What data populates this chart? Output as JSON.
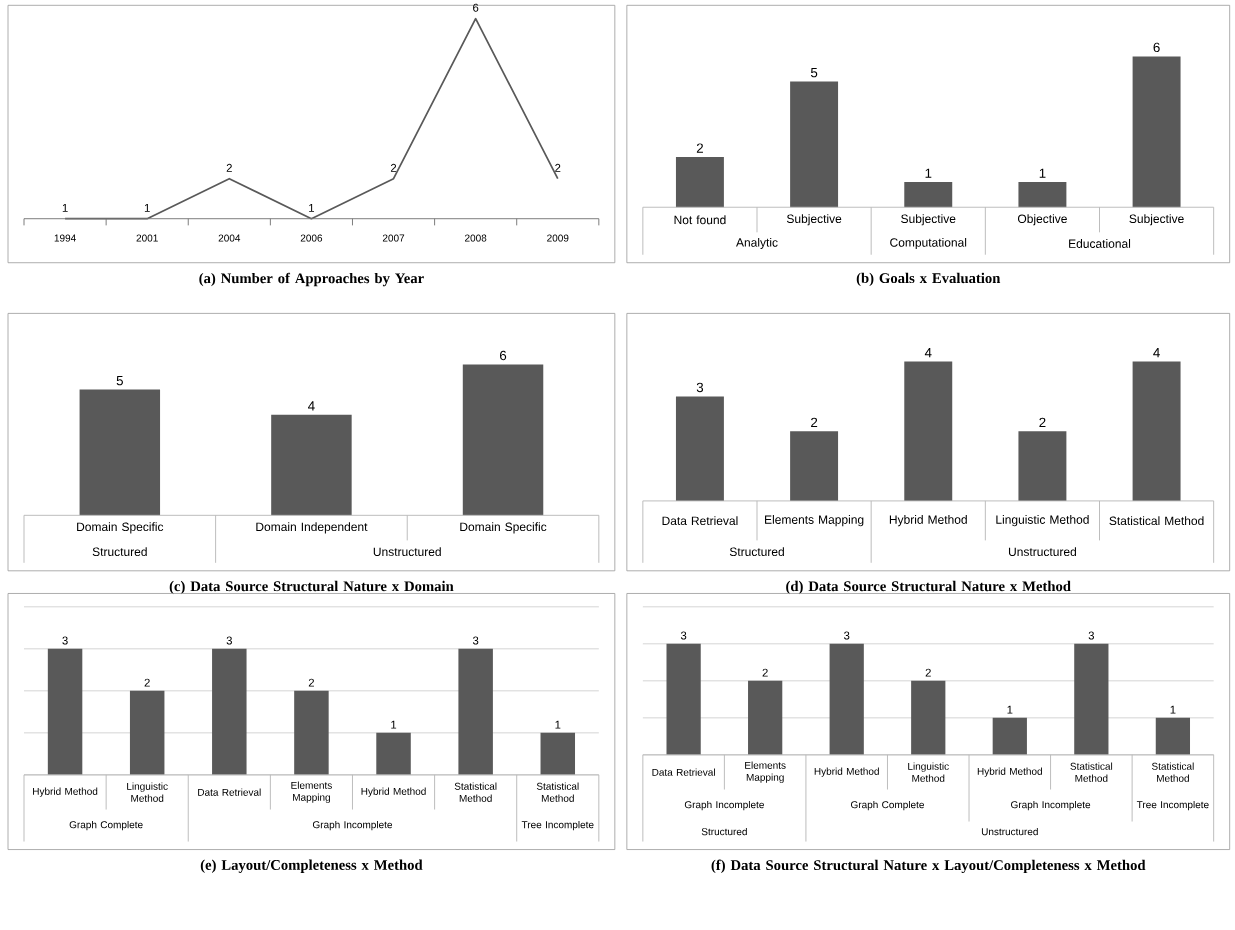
{
  "chart_data": [
    {
      "type": "line",
      "title": "(a) Number of Approaches by Year",
      "categories": [
        "1994",
        "2001",
        "2004",
        "2006",
        "2007",
        "2008",
        "2009"
      ],
      "values": [
        1,
        1,
        2,
        1,
        2,
        6,
        2
      ],
      "color": "#595959",
      "data_labels": true
    },
    {
      "type": "bar",
      "title": "(b) Goals x Evaluation",
      "categories": [
        "Not found",
        "Subjective",
        "Subjective",
        "Objective",
        "Subjective"
      ],
      "values": [
        2,
        5,
        1,
        1,
        6
      ],
      "color": "#595959",
      "data_labels": true,
      "annotations": [
        "Analytic",
        "Computational",
        "Educational"
      ]
    },
    {
      "type": "bar",
      "title": "(c) Data Source Structural Nature x Domain",
      "categories": [
        "Domain Specific",
        "Domain Independent",
        "Domain Specific"
      ],
      "values": [
        5,
        4,
        6
      ],
      "color": "#595959",
      "data_labels": true,
      "annotations": [
        "Structured",
        "Unstructured"
      ]
    },
    {
      "type": "bar",
      "title": "(d) Data Source Structural Nature x Method",
      "categories": [
        "Data Retrieval",
        "Elements Mapping",
        "Hybrid Method",
        "Linguistic Method",
        "Statistical Method"
      ],
      "values": [
        3,
        2,
        4,
        2,
        4
      ],
      "color": "#595959",
      "data_labels": true,
      "annotations": [
        "Structured",
        "Unstructured"
      ]
    },
    {
      "type": "bar",
      "title": "(e) Layout/Completeness x Method",
      "categories": [
        "Hybrid Method",
        "Linguistic Method",
        "Data Retrieval",
        "Elements Mapping",
        "Hybrid Method",
        "Statistical Method",
        "Statistical Method"
      ],
      "values": [
        3,
        2,
        3,
        2,
        1,
        3,
        1
      ],
      "color": "#595959",
      "data_labels": true,
      "ylim": [
        0,
        4
      ],
      "yticks": [
        {
          "value": 0,
          "label": null
        },
        {
          "value": 1,
          "label": null
        },
        {
          "value": 2,
          "label": null
        },
        {
          "value": 3,
          "label": null
        },
        {
          "value": 4,
          "label": null
        }
      ],
      "grid": "y",
      "tick_labels": "x",
      "annotations": [
        "Graph Complete",
        "Graph Incomplete",
        "Tree Incomplete"
      ]
    },
    {
      "type": "bar",
      "title": "(f) Data Source Structural Nature x Layout/Completeness x Method",
      "categories": [
        "Data Retrieval",
        "Elements Mapping",
        "Hybrid Method",
        "Linguistic Method",
        "Hybrid Method",
        "Statistical Method",
        "Statistical Method"
      ],
      "values": [
        3,
        2,
        3,
        2,
        1,
        3,
        1
      ],
      "color": "#595959",
      "data_labels": true,
      "ylim": [
        0,
        4
      ],
      "yticks": [
        {
          "value": 0,
          "label": null
        },
        {
          "value": 1,
          "label": null
        },
        {
          "value": 2,
          "label": null
        },
        {
          "value": 3,
          "label": null
        },
        {
          "value": 4,
          "label": null
        }
      ],
      "grid": "y",
      "tick_labels": "x",
      "annotations": [
        "Graph Incomplete",
        "Graph Complete",
        "Graph Incomplete",
        "Tree Incomplete",
        "Structured",
        "Unstructured"
      ]
    }
  ]
}
